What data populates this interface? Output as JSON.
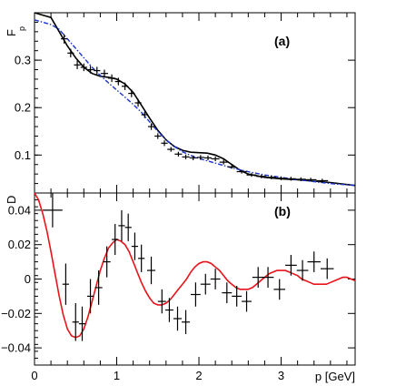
{
  "chart_data": [
    {
      "type": "scatter",
      "panel_label": "(a)",
      "ylabel": "F",
      "ylabel_sub": "p",
      "xlabel": "",
      "xlim": [
        0,
        3.9
      ],
      "ylim": [
        0.02,
        0.4
      ],
      "yticks": [
        0.1,
        0.2,
        0.3
      ],
      "ytick_labels": [
        "0.1",
        "0.2",
        "0.3"
      ],
      "colors": {
        "data": "#000000",
        "fit": "#000000",
        "smooth": "#1a33cc"
      },
      "series": [
        {
          "type": "scatter_errorbars",
          "x": [
            0.36,
            0.44,
            0.52,
            0.6,
            0.68,
            0.76,
            0.85,
            0.94,
            1.02,
            1.1,
            1.18,
            1.26,
            1.34,
            1.42,
            1.5,
            1.58,
            1.66,
            1.75,
            1.84,
            1.93,
            2.02,
            2.11,
            2.2,
            2.3,
            2.4,
            2.52,
            2.64,
            2.76,
            2.88,
            3.0,
            3.12,
            3.24,
            3.36,
            3.5
          ],
          "y": [
            0.345,
            0.315,
            0.29,
            0.285,
            0.28,
            0.278,
            0.272,
            0.262,
            0.255,
            0.245,
            0.23,
            0.21,
            0.185,
            0.16,
            0.14,
            0.125,
            0.112,
            0.102,
            0.096,
            0.094,
            0.095,
            0.094,
            0.092,
            0.085,
            0.075,
            0.065,
            0.058,
            0.055,
            0.053,
            0.051,
            0.05,
            0.049,
            0.048,
            0.046
          ],
          "xerr": [
            0.04,
            0.04,
            0.04,
            0.04,
            0.04,
            0.04,
            0.045,
            0.045,
            0.04,
            0.04,
            0.04,
            0.04,
            0.04,
            0.04,
            0.04,
            0.04,
            0.045,
            0.045,
            0.045,
            0.045,
            0.045,
            0.045,
            0.05,
            0.05,
            0.05,
            0.06,
            0.06,
            0.06,
            0.06,
            0.06,
            0.06,
            0.06,
            0.07,
            0.07
          ],
          "yerr": [
            0.01,
            0.009,
            0.009,
            0.008,
            0.008,
            0.008,
            0.008,
            0.008,
            0.008,
            0.008,
            0.008,
            0.008,
            0.007,
            0.007,
            0.006,
            0.006,
            0.005,
            0.005,
            0.005,
            0.005,
            0.005,
            0.005,
            0.005,
            0.005,
            0.004,
            0.004,
            0.004,
            0.004,
            0.004,
            0.004,
            0.004,
            0.004,
            0.004,
            0.004
          ]
        },
        {
          "type": "line",
          "style": "solid",
          "x": [
            0.0,
            0.2,
            0.3,
            0.4,
            0.5,
            0.6,
            0.7,
            0.8,
            0.9,
            1.0,
            1.1,
            1.2,
            1.3,
            1.4,
            1.5,
            1.6,
            1.7,
            1.8,
            1.9,
            2.0,
            2.1,
            2.2,
            2.3,
            2.4,
            2.5,
            2.6,
            2.8,
            3.0,
            3.2,
            3.4,
            3.6,
            3.9
          ],
          "y": [
            0.44,
            0.39,
            0.36,
            0.33,
            0.305,
            0.285,
            0.272,
            0.266,
            0.264,
            0.26,
            0.25,
            0.232,
            0.205,
            0.178,
            0.152,
            0.132,
            0.118,
            0.11,
            0.106,
            0.105,
            0.104,
            0.1,
            0.092,
            0.08,
            0.068,
            0.06,
            0.053,
            0.05,
            0.048,
            0.045,
            0.042,
            0.036
          ]
        },
        {
          "type": "line",
          "style": "dashdot",
          "x": [
            0.0,
            0.2,
            0.3,
            0.4,
            0.5,
            0.6,
            0.7,
            0.8,
            0.9,
            1.0,
            1.1,
            1.2,
            1.3,
            1.4,
            1.5,
            1.6,
            1.7,
            1.8,
            1.9,
            2.0,
            2.2,
            2.4,
            2.6,
            2.8,
            3.0,
            3.2,
            3.4,
            3.6,
            3.9
          ],
          "y": [
            0.385,
            0.375,
            0.365,
            0.345,
            0.325,
            0.305,
            0.285,
            0.268,
            0.252,
            0.237,
            0.222,
            0.207,
            0.19,
            0.17,
            0.15,
            0.132,
            0.118,
            0.107,
            0.099,
            0.093,
            0.083,
            0.073,
            0.065,
            0.058,
            0.053,
            0.048,
            0.044,
            0.04,
            0.036
          ]
        }
      ]
    },
    {
      "type": "scatter",
      "panel_label": "(b)",
      "ylabel": "D",
      "xlabel": "p [GeV]",
      "xlim": [
        0,
        3.9
      ],
      "ylim": [
        -0.05,
        0.05
      ],
      "xticks": [
        0,
        1,
        2,
        3
      ],
      "xtick_labels": [
        "0",
        "1",
        "2",
        "3"
      ],
      "yticks": [
        -0.04,
        -0.02,
        0,
        0.02,
        0.04
      ],
      "ytick_labels": [
        "−0.04",
        "−0.02",
        "0",
        "0.02",
        "0.04"
      ],
      "colors": {
        "data": "#000000",
        "fit": "#e8141b"
      },
      "series": [
        {
          "type": "scatter_errorbars",
          "x": [
            0.22,
            0.38,
            0.5,
            0.58,
            0.68,
            0.78,
            0.88,
            0.98,
            1.06,
            1.14,
            1.22,
            1.3,
            1.42,
            1.55,
            1.64,
            1.74,
            1.84,
            1.96,
            2.08,
            2.2,
            2.34,
            2.46,
            2.58,
            2.72,
            2.84,
            2.98,
            3.12,
            3.26,
            3.4,
            3.56
          ],
          "y": [
            0.04,
            -0.003,
            -0.025,
            -0.026,
            -0.01,
            -0.005,
            0.01,
            0.023,
            0.031,
            0.03,
            0.019,
            0.012,
            0.005,
            -0.013,
            -0.018,
            -0.023,
            -0.025,
            -0.009,
            -0.003,
            0.0,
            -0.008,
            -0.01,
            -0.013,
            0.001,
            0.001,
            -0.006,
            0.008,
            0.005,
            0.01,
            0.006
          ],
          "xerr": [
            0.12,
            0.04,
            0.04,
            0.04,
            0.04,
            0.045,
            0.045,
            0.04,
            0.04,
            0.04,
            0.04,
            0.04,
            0.05,
            0.05,
            0.05,
            0.05,
            0.05,
            0.06,
            0.06,
            0.06,
            0.06,
            0.06,
            0.06,
            0.07,
            0.07,
            0.07,
            0.07,
            0.07,
            0.08,
            0.08
          ],
          "yerr": [
            0.01,
            0.012,
            0.011,
            0.01,
            0.01,
            0.01,
            0.009,
            0.009,
            0.009,
            0.008,
            0.008,
            0.008,
            0.008,
            0.007,
            0.007,
            0.007,
            0.007,
            0.007,
            0.006,
            0.006,
            0.006,
            0.006,
            0.006,
            0.006,
            0.006,
            0.006,
            0.006,
            0.006,
            0.006,
            0.006
          ]
        },
        {
          "type": "line",
          "style": "solid",
          "x": [
            0.0,
            0.05,
            0.1,
            0.15,
            0.2,
            0.25,
            0.3,
            0.35,
            0.4,
            0.45,
            0.5,
            0.55,
            0.6,
            0.65,
            0.7,
            0.75,
            0.8,
            0.85,
            0.9,
            0.95,
            1.0,
            1.05,
            1.1,
            1.15,
            1.2,
            1.25,
            1.3,
            1.35,
            1.4,
            1.45,
            1.5,
            1.55,
            1.6,
            1.65,
            1.7,
            1.75,
            1.8,
            1.85,
            1.9,
            1.95,
            2.0,
            2.05,
            2.1,
            2.15,
            2.2,
            2.25,
            2.3,
            2.35,
            2.4,
            2.45,
            2.5,
            2.55,
            2.6,
            2.65,
            2.7,
            2.75,
            2.8,
            2.85,
            2.9,
            2.95,
            3.0,
            3.05,
            3.1,
            3.15,
            3.2,
            3.25,
            3.3,
            3.35,
            3.4,
            3.45,
            3.5,
            3.55,
            3.6,
            3.65,
            3.7,
            3.75,
            3.8,
            3.85,
            3.9
          ],
          "y": [
            0.05,
            0.046,
            0.038,
            0.028,
            0.016,
            0.003,
            -0.01,
            -0.021,
            -0.029,
            -0.033,
            -0.034,
            -0.033,
            -0.029,
            -0.022,
            -0.013,
            -0.004,
            0.005,
            0.012,
            0.018,
            0.021,
            0.023,
            0.022,
            0.02,
            0.016,
            0.01,
            0.004,
            -0.002,
            -0.007,
            -0.011,
            -0.014,
            -0.015,
            -0.015,
            -0.014,
            -0.012,
            -0.009,
            -0.006,
            -0.003,
            0.0,
            0.004,
            0.007,
            0.009,
            0.01,
            0.01,
            0.009,
            0.007,
            0.005,
            0.002,
            -0.001,
            -0.003,
            -0.005,
            -0.006,
            -0.006,
            -0.006,
            -0.005,
            -0.003,
            -0.001,
            0.001,
            0.003,
            0.004,
            0.005,
            0.005,
            0.005,
            0.004,
            0.003,
            0.002,
            0.0,
            -0.001,
            -0.002,
            -0.003,
            -0.003,
            -0.003,
            -0.003,
            -0.002,
            -0.001,
            0.0,
            0.001,
            0.001,
            0.0,
            -0.001
          ]
        }
      ]
    }
  ]
}
